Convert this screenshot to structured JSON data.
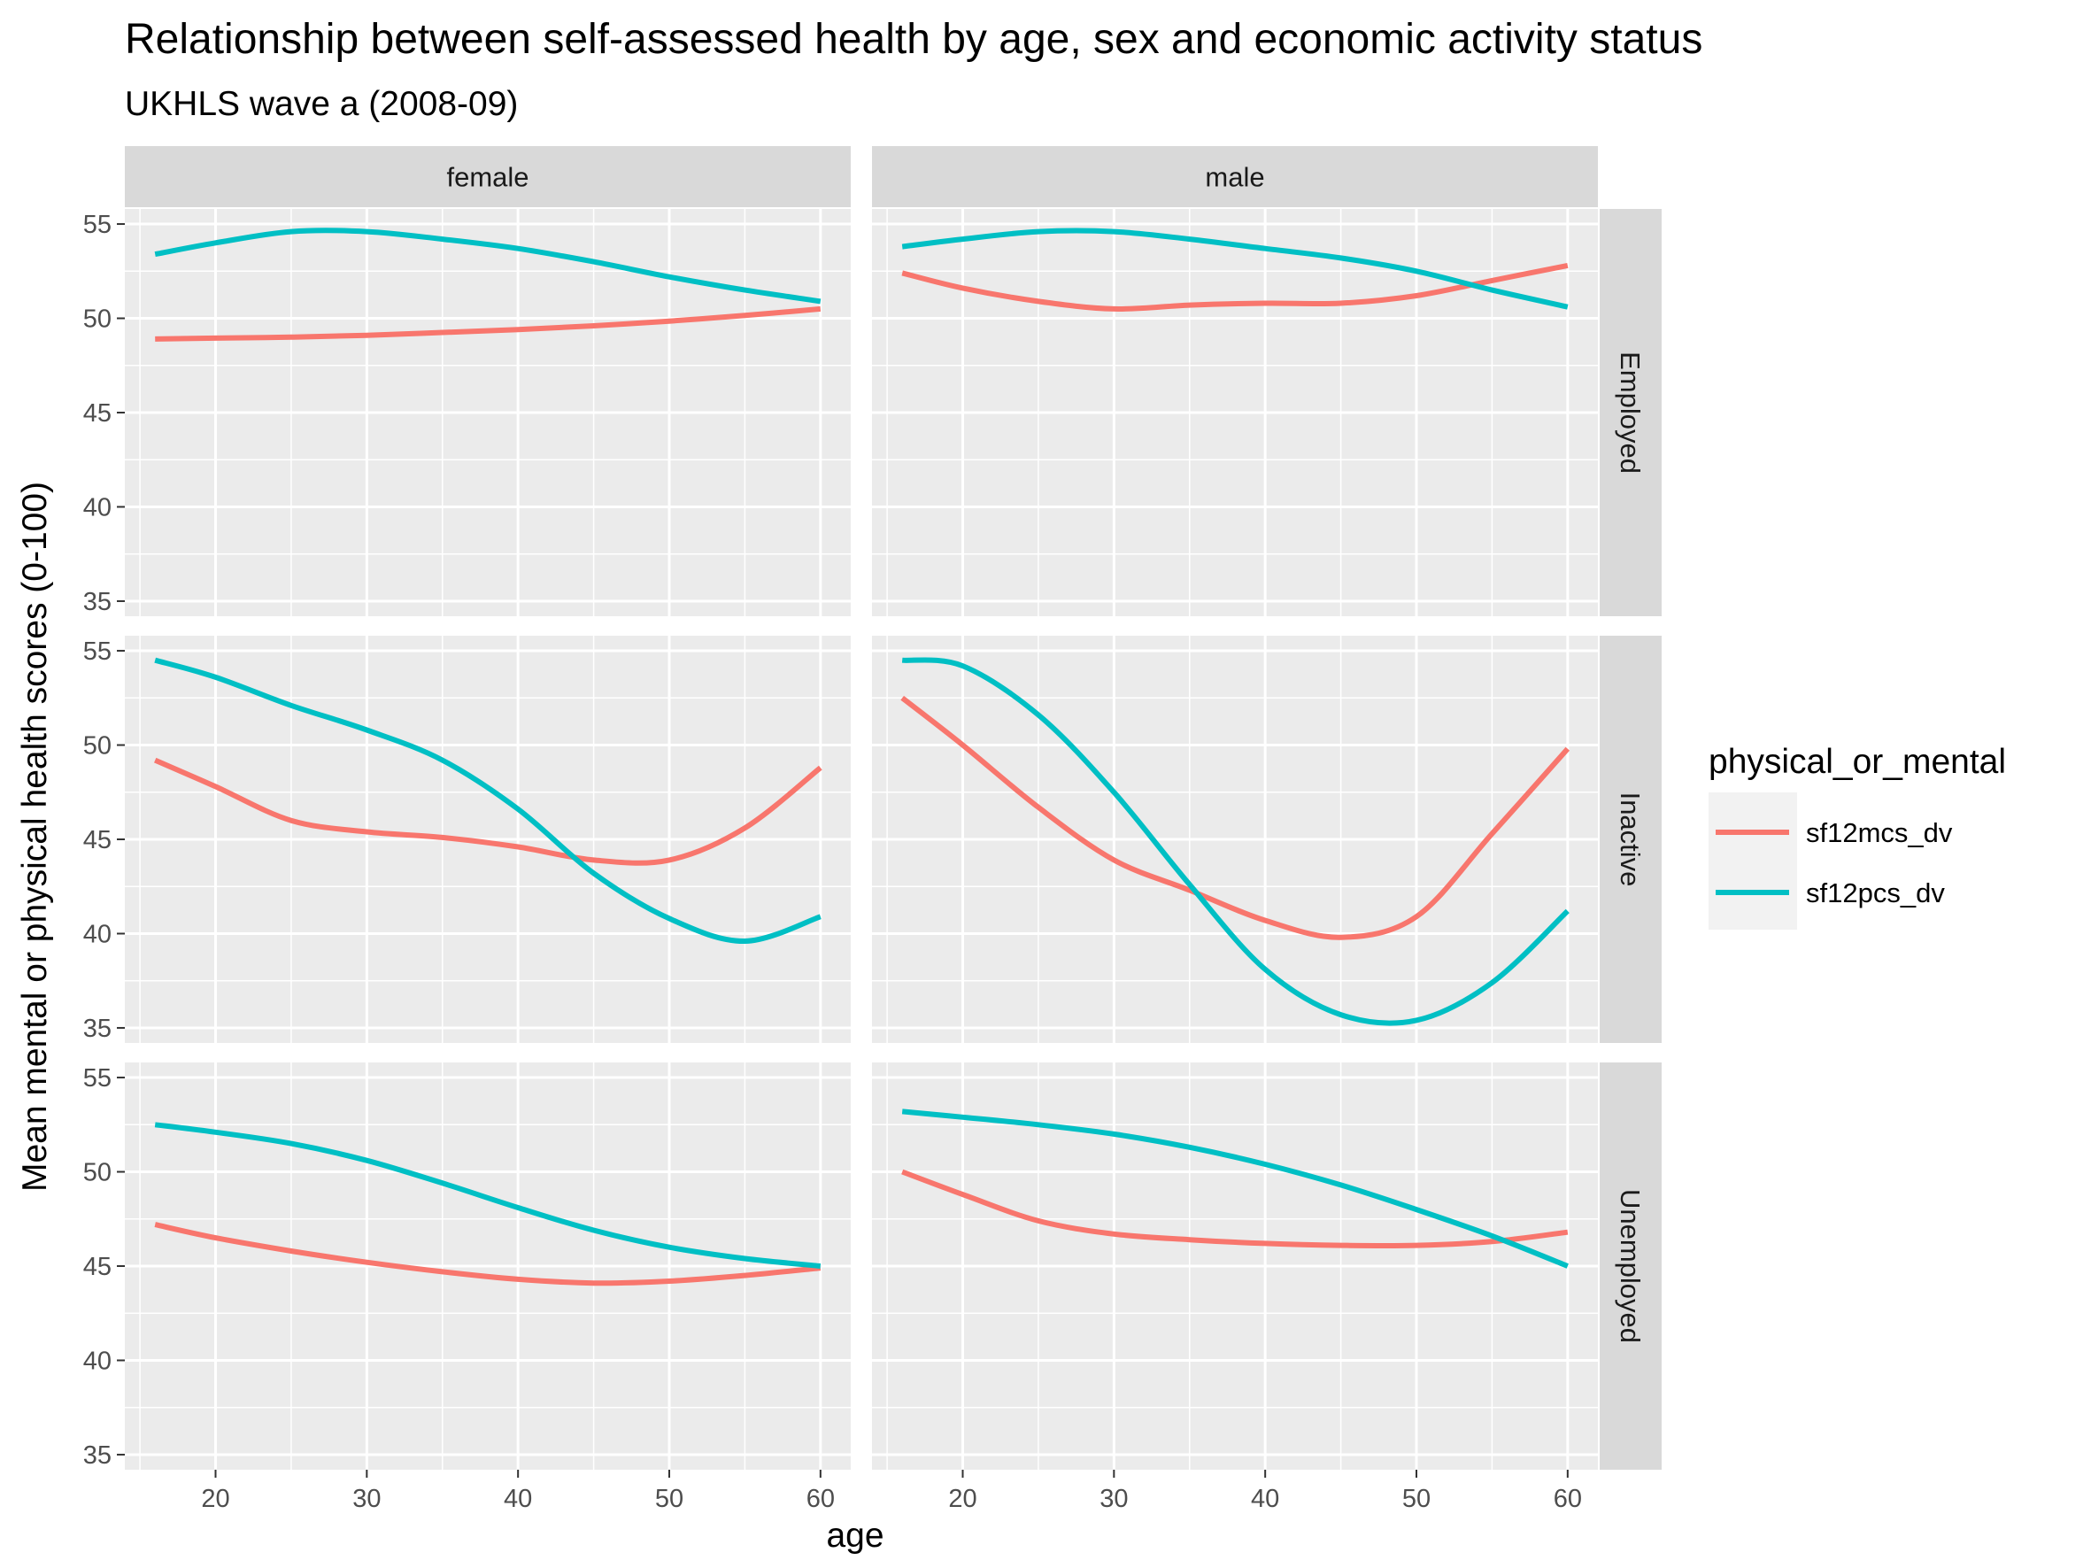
{
  "chart_data": {
    "type": "line",
    "title": "Relationship between self-assessed health by age, sex and economic activity status",
    "subtitle": "UKHLS wave a (2008-09)",
    "xlabel": "age",
    "ylabel": "Mean mental or physical health scores (0-100)",
    "xlim": [
      14,
      62
    ],
    "ylim": [
      34.2,
      55.8
    ],
    "x_ticks": [
      20,
      30,
      40,
      50,
      60
    ],
    "y_ticks": [
      35,
      40,
      45,
      50,
      55
    ],
    "grid": true,
    "facet_columns": [
      "female",
      "male"
    ],
    "facet_rows": [
      "Employed",
      "Inactive",
      "Unemployed"
    ],
    "legend": {
      "title": "physical_or_mental",
      "position": "right",
      "entries": [
        {
          "name": "sf12mcs_dv",
          "color": "#F8766D"
        },
        {
          "name": "sf12pcs_dv",
          "color": "#00BFC4"
        }
      ]
    },
    "x": [
      16,
      20,
      25,
      30,
      35,
      40,
      45,
      50,
      55,
      60
    ],
    "panels": [
      {
        "row": "Employed",
        "column": "female",
        "series": [
          {
            "name": "sf12mcs_dv",
            "color": "#F8766D",
            "values": [
              48.9,
              48.95,
              49.0,
              49.1,
              49.25,
              49.4,
              49.6,
              49.85,
              50.15,
              50.5
            ]
          },
          {
            "name": "sf12pcs_dv",
            "color": "#00BFC4",
            "values": [
              53.4,
              54.0,
              54.6,
              54.6,
              54.2,
              53.7,
              53.0,
              52.2,
              51.5,
              50.9
            ]
          }
        ]
      },
      {
        "row": "Employed",
        "column": "male",
        "series": [
          {
            "name": "sf12mcs_dv",
            "color": "#F8766D",
            "values": [
              52.4,
              51.6,
              50.9,
              50.5,
              50.7,
              50.8,
              50.8,
              51.2,
              52.0,
              52.8
            ]
          },
          {
            "name": "sf12pcs_dv",
            "color": "#00BFC4",
            "values": [
              53.8,
              54.2,
              54.6,
              54.6,
              54.2,
              53.7,
              53.2,
              52.5,
              51.5,
              50.6
            ]
          }
        ]
      },
      {
        "row": "Inactive",
        "column": "female",
        "series": [
          {
            "name": "sf12mcs_dv",
            "color": "#F8766D",
            "values": [
              49.2,
              47.8,
              46.0,
              45.4,
              45.1,
              44.6,
              43.9,
              43.9,
              45.6,
              48.8
            ]
          },
          {
            "name": "sf12pcs_dv",
            "color": "#00BFC4",
            "values": [
              54.5,
              53.6,
              52.1,
              50.8,
              49.2,
              46.6,
              43.2,
              40.8,
              39.6,
              40.9
            ]
          }
        ]
      },
      {
        "row": "Inactive",
        "column": "male",
        "series": [
          {
            "name": "sf12mcs_dv",
            "color": "#F8766D",
            "values": [
              52.5,
              50.0,
              46.7,
              43.9,
              42.3,
              40.7,
              39.8,
              40.9,
              45.3,
              49.8
            ]
          },
          {
            "name": "sf12pcs_dv",
            "color": "#00BFC4",
            "values": [
              54.5,
              54.2,
              51.6,
              47.5,
              42.6,
              38.1,
              35.7,
              35.4,
              37.4,
              41.2
            ]
          }
        ]
      },
      {
        "row": "Unemployed",
        "column": "female",
        "series": [
          {
            "name": "sf12mcs_dv",
            "color": "#F8766D",
            "values": [
              47.2,
              46.5,
              45.8,
              45.2,
              44.7,
              44.3,
              44.1,
              44.2,
              44.5,
              44.9
            ]
          },
          {
            "name": "sf12pcs_dv",
            "color": "#00BFC4",
            "values": [
              52.5,
              52.1,
              51.5,
              50.6,
              49.4,
              48.1,
              46.9,
              46.0,
              45.4,
              45.0
            ]
          }
        ]
      },
      {
        "row": "Unemployed",
        "column": "male",
        "series": [
          {
            "name": "sf12mcs_dv",
            "color": "#F8766D",
            "values": [
              50.0,
              48.8,
              47.4,
              46.7,
              46.4,
              46.2,
              46.1,
              46.1,
              46.3,
              46.8
            ]
          },
          {
            "name": "sf12pcs_dv",
            "color": "#00BFC4",
            "values": [
              53.2,
              52.9,
              52.5,
              52.0,
              51.3,
              50.4,
              49.3,
              48.0,
              46.6,
              45.0
            ]
          }
        ]
      }
    ]
  }
}
